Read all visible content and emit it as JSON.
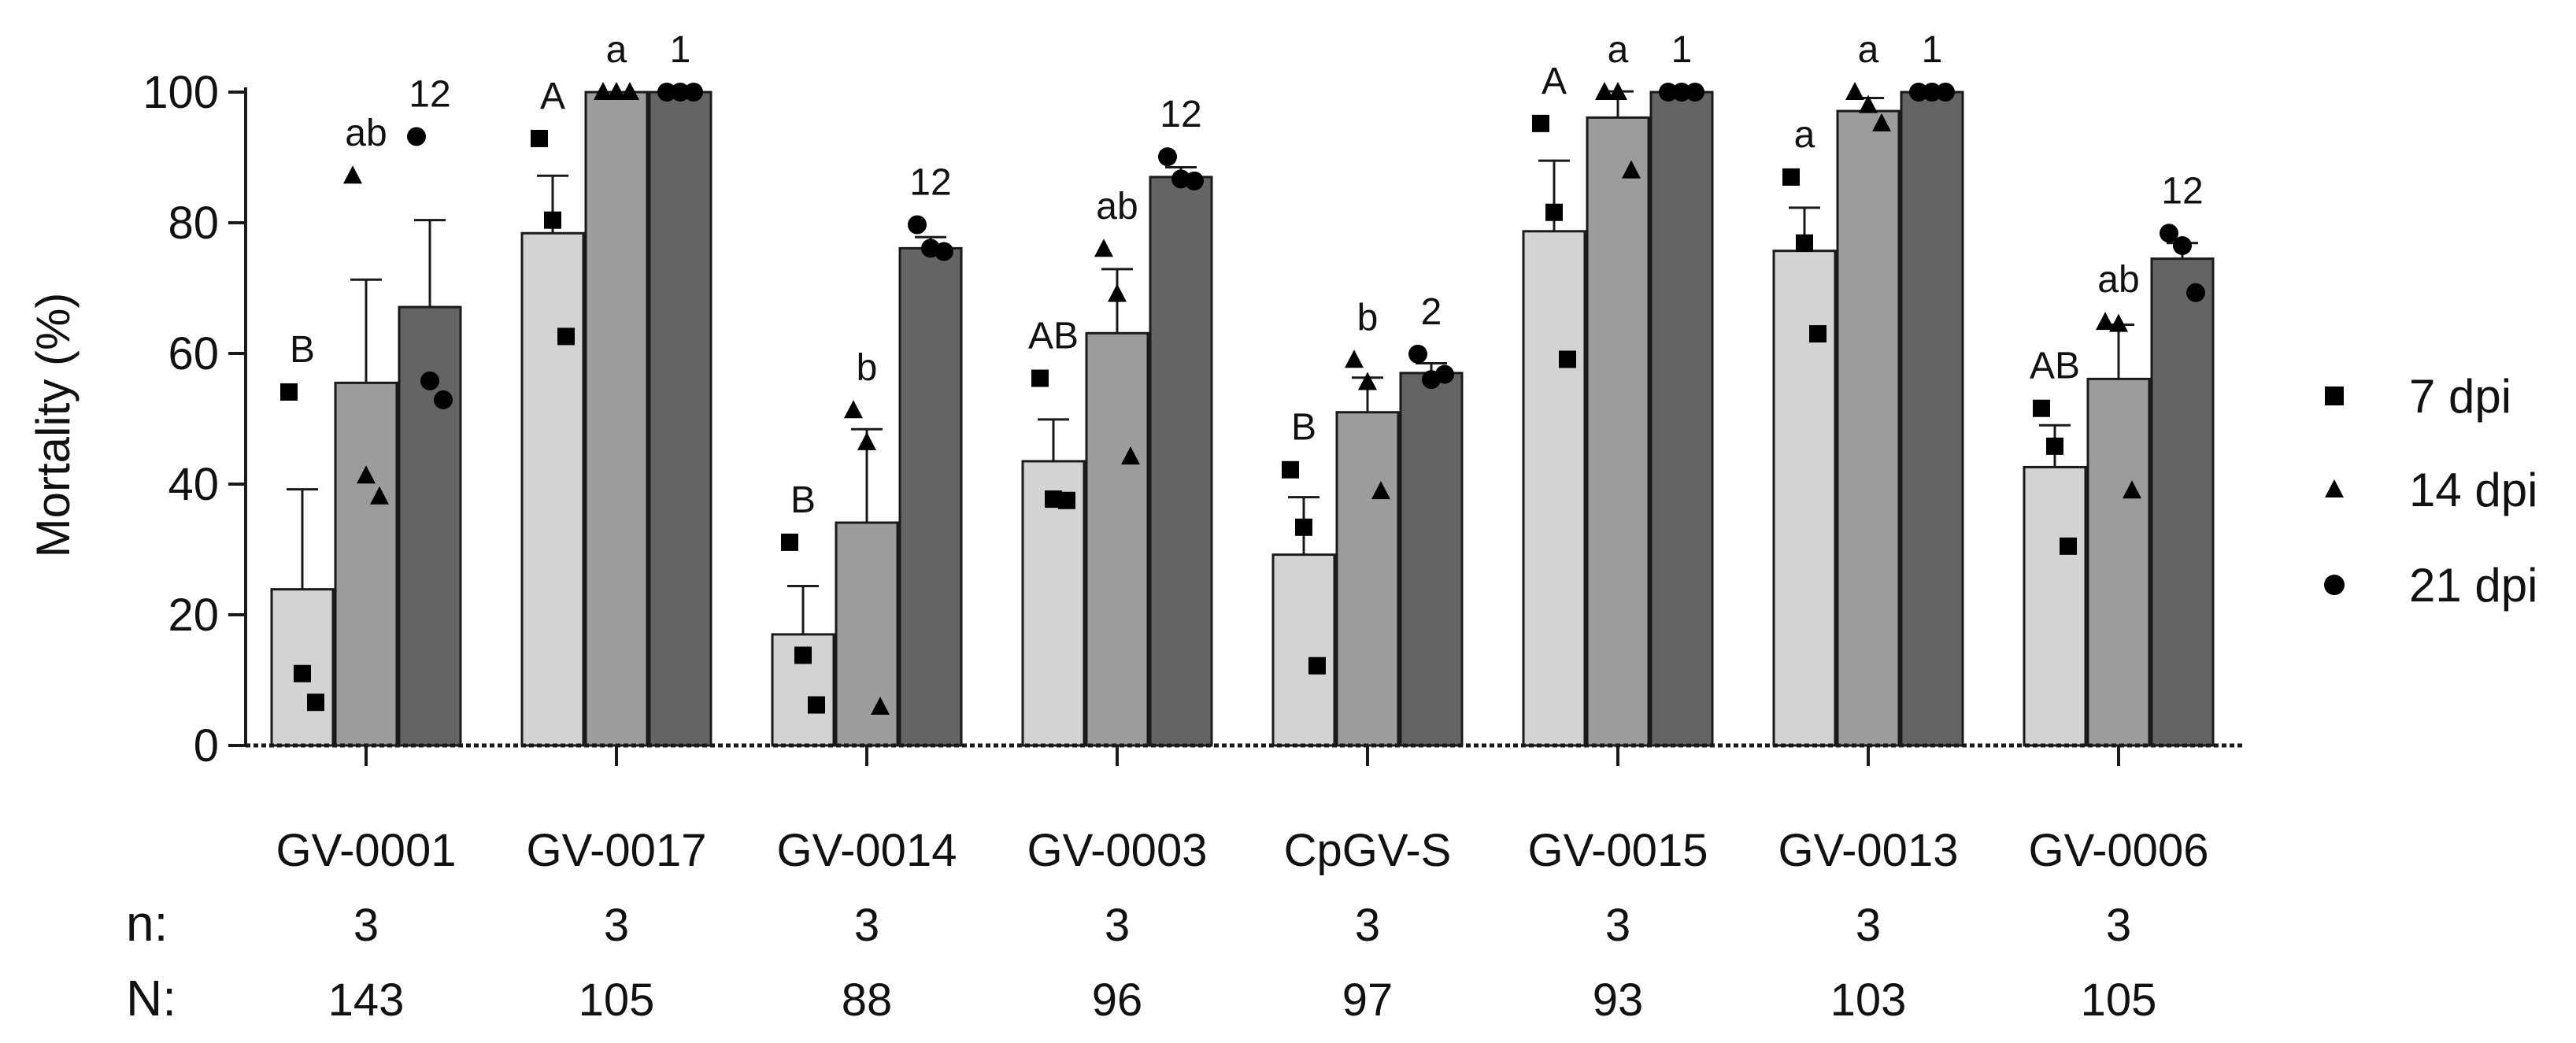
{
  "chart_data": {
    "type": "bar",
    "ylabel": "Mortality (%)",
    "ylim": [
      0,
      100
    ],
    "yticks": [
      0,
      20,
      40,
      60,
      80,
      100
    ],
    "categories": [
      "GV-0001",
      "GV-0017",
      "GV-0014",
      "GV-0003",
      "CpGV-S",
      "GV-0015",
      "GV-0013",
      "GV-0006"
    ],
    "row_labels": {
      "n": "n:",
      "N": "N:"
    },
    "n": [
      "3",
      "3",
      "3",
      "3",
      "3",
      "3",
      "3",
      "3"
    ],
    "N": [
      "143",
      "105",
      "88",
      "96",
      "97",
      "93",
      "103",
      "105"
    ],
    "series": [
      {
        "name": "7 dpi",
        "marker": "square",
        "color": "#d3d3d3",
        "values": [
          23.9,
          78.4,
          17.0,
          43.5,
          29.2,
          78.7,
          75.7,
          42.6
        ],
        "errors": [
          15.3,
          8.8,
          7.4,
          6.4,
          8.8,
          10.8,
          6.6,
          6.4
        ],
        "points": [
          [
            54.1,
            11.0,
            6.6
          ],
          [
            92.9,
            80.4,
            62.6
          ],
          [
            31.1,
            13.8,
            6.2
          ],
          [
            56.2,
            37.7,
            37.5
          ],
          [
            42.2,
            33.4,
            12.2
          ],
          [
            95.2,
            81.6,
            59.1
          ],
          [
            87.0,
            76.9,
            63.0
          ],
          [
            51.6,
            45.8,
            30.5
          ]
        ],
        "letters": [
          "B",
          "A",
          "B",
          "AB",
          "B",
          "A",
          "a",
          "AB"
        ]
      },
      {
        "name": "14 dpi",
        "marker": "triangle",
        "color": "#9c9c9c",
        "values": [
          55.5,
          100,
          34.1,
          63.1,
          51.0,
          96.1,
          97.1,
          56.1
        ],
        "errors": [
          15.8,
          0,
          14.3,
          9.8,
          5.3,
          4.0,
          2.0,
          8.3
        ],
        "points": [
          [
            87.2,
            41.3,
            38.1
          ],
          [
            100,
            100,
            100
          ],
          [
            51.3,
            46.4,
            5.9
          ],
          [
            76.0,
            69.1,
            44.2
          ],
          [
            59.0,
            55.6,
            38.9
          ],
          [
            100,
            100,
            88.0
          ],
          [
            100,
            98.0,
            95.2
          ],
          [
            64.8,
            64.5,
            39.0
          ]
        ],
        "letters": [
          "ab",
          "a",
          "b",
          "ab",
          "b",
          "a",
          "a",
          "ab"
        ]
      },
      {
        "name": "21 dpi",
        "marker": "circle",
        "color": "#646464",
        "values": [
          67.1,
          100,
          76.1,
          87.0,
          57.0,
          100,
          100,
          74.5
        ],
        "errors": [
          13.3,
          0,
          1.7,
          1.5,
          1.5,
          0,
          0,
          2.4
        ],
        "points": [
          [
            93.2,
            55.8,
            52.9
          ],
          [
            100,
            100,
            100
          ],
          [
            79.7,
            76.1,
            75.6
          ],
          [
            90.1,
            86.7,
            86.4
          ],
          [
            59.9,
            56.0,
            56.8
          ],
          [
            100,
            100,
            100
          ],
          [
            100,
            100,
            100
          ],
          [
            78.4,
            76.5,
            69.3
          ]
        ],
        "letters": [
          "12",
          "1",
          "12",
          "12",
          "2",
          "1",
          "1",
          "12"
        ]
      }
    ],
    "legend": [
      "7 dpi",
      "14 dpi",
      "21 dpi"
    ],
    "legend_position": "right"
  }
}
